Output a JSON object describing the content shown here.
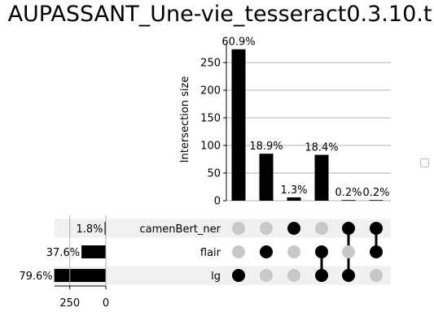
{
  "chart_data": {
    "type": "bar",
    "title": "AUPASSANT_Une-vie_tesseract0.3.10.t",
    "ylabel": "Intersection size",
    "ylim": [
      0,
      285
    ],
    "yticks": [
      0,
      50,
      100,
      150,
      200,
      250
    ],
    "grid": true,
    "legend": "right (empty)",
    "sets": [
      "camenBert_ner",
      "flair",
      "lg"
    ],
    "intersections": [
      {
        "members": [
          "lg"
        ],
        "value": 274,
        "label": "60.9%"
      },
      {
        "members": [
          "flair"
        ],
        "value": 85,
        "label": "18.9%"
      },
      {
        "members": [
          "camenBert_ner"
        ],
        "value": 6,
        "label": "1.3%"
      },
      {
        "members": [
          "flair",
          "lg"
        ],
        "value": 83,
        "label": "18.4%"
      },
      {
        "members": [
          "camenBert_ner",
          "lg"
        ],
        "value": 1,
        "label": "0.2%"
      },
      {
        "members": [
          "camenBert_ner",
          "flair"
        ],
        "value": 1,
        "label": "0.2%"
      }
    ],
    "set_sizes": {
      "xticks": [
        250,
        0
      ],
      "xlim": [
        0,
        360
      ],
      "values": [
        {
          "set": "camenBert_ner",
          "value": 8,
          "label": "1.8%"
        },
        {
          "set": "flair",
          "value": 169,
          "label": "37.6%"
        },
        {
          "set": "lg",
          "value": 358,
          "label": "79.6%"
        }
      ]
    },
    "colors": {
      "bar": "#000000",
      "dot_active": "#000000",
      "dot_inactive": "#c8c8c8",
      "stripe": "#f0f0f0",
      "grid": "#b0b0b0"
    }
  }
}
